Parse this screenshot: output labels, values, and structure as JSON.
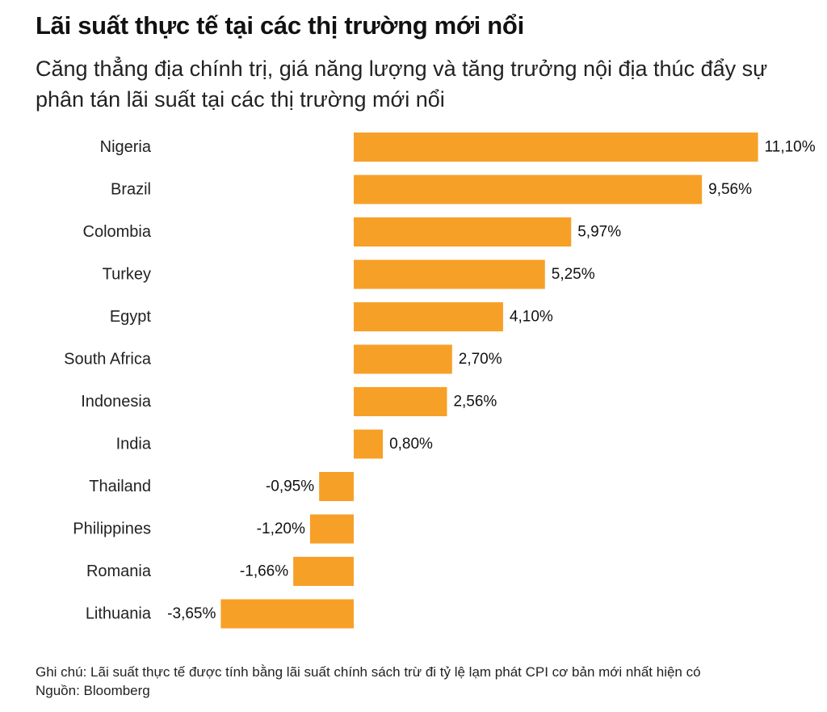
{
  "header": {
    "title": "Lãi suất thực tế tại các thị trường mới nổi",
    "subtitle": "Căng thẳng địa chính trị, giá năng lượng và tăng trưởng nội địa thúc đẩy sự phân tán lãi suất tại các thị trường mới nổi"
  },
  "chart_data": {
    "type": "bar",
    "orientation": "horizontal",
    "categories": [
      "Nigeria",
      "Brazil",
      "Colombia",
      "Turkey",
      "Egypt",
      "South Africa",
      "Indonesia",
      "India",
      "Thailand",
      "Philippines",
      "Romania",
      "Lithuania"
    ],
    "values": [
      11.1,
      9.56,
      5.97,
      5.25,
      4.1,
      2.7,
      2.56,
      0.8,
      -0.95,
      -1.2,
      -1.66,
      -3.65
    ],
    "labels": [
      "11,10%",
      "9,56%",
      "5,97%",
      "5,25%",
      "4,10%",
      "2,70%",
      "2,56%",
      "0,80%",
      "-0,95%",
      "-1,20%",
      "-1,66%",
      "-3,65%"
    ],
    "unit": "%",
    "bar_color": "#f7a028",
    "grid": false,
    "legend": "none"
  },
  "footer": {
    "note": "Ghi chú: Lãi suất thực tế được tính bằng lãi suất chính sách trừ đi tỷ lệ lạm phát CPI cơ bản mới nhất hiện có",
    "source": "Nguồn: Bloomberg"
  }
}
